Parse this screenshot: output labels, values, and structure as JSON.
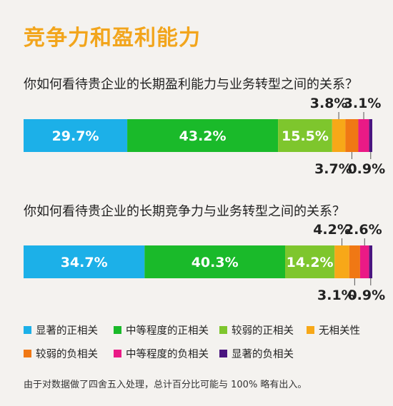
{
  "title": "竞争力和盈利能力",
  "footnote": "由于对数据做了四舍五入处理，总计百分比可能与 100% 略有出入。",
  "chart_data": {
    "type": "bar",
    "stacked": true,
    "orientation": "horizontal",
    "unit": "%",
    "categories": [
      "显著的正相关",
      "中等程度的正相关",
      "较弱的正相关",
      "无相关性",
      "较弱的负相关",
      "中等程度的负相关",
      "显著的负相关"
    ],
    "colors": [
      "#1cb0e8",
      "#1aba2a",
      "#7ec62d",
      "#f7a818",
      "#f07814",
      "#ea1a86",
      "#4a1580"
    ],
    "legend_position": "bottom",
    "charts": [
      {
        "question": "你如何看待贵企业的长期盈利能力与业务转型之间的关系？",
        "values": [
          29.7,
          43.2,
          15.5,
          3.8,
          3.7,
          3.1,
          0.9
        ],
        "labels": [
          "29.7%",
          "43.2%",
          "15.5%",
          "3.8%",
          "3.7%",
          "3.1%",
          "0.9%"
        ]
      },
      {
        "question": "你如何看待贵企业的长期竞争力与业务转型之间的关系？",
        "values": [
          34.7,
          40.3,
          14.2,
          4.2,
          3.1,
          2.6,
          0.9
        ],
        "labels": [
          "34.7%",
          "40.3%",
          "14.2%",
          "4.2%",
          "3.1%",
          "2.6%",
          "0.9%"
        ]
      }
    ]
  }
}
